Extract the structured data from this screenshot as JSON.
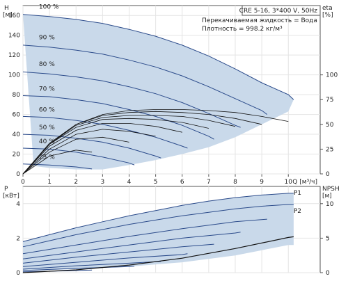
{
  "chart_data": [
    {
      "type": "line",
      "panel": "head-efficiency",
      "title": "CRE 5-16, 3*400 V, 50Hz",
      "info": [
        "Перекачиваемая жидкость = Вода",
        "Плотность = 998.2 кг/м³"
      ],
      "ylabel": [
        "H",
        "[м]"
      ],
      "y2label": [
        "eta",
        "[%]"
      ],
      "xlabel": "Q [м³/ч]",
      "xlim": [
        0,
        11.2
      ],
      "ylim": [
        0,
        170
      ],
      "y2lim": [
        0,
        170
      ],
      "xticks": [
        "0",
        "1",
        "2",
        "3",
        "4",
        "5",
        "6",
        "7",
        "8",
        "9",
        "10"
      ],
      "yticks": [
        "0",
        "20",
        "40",
        "60",
        "80",
        "100",
        "120",
        "140",
        "160"
      ],
      "y2ticks": [
        "0",
        "25",
        "50",
        "75",
        "100"
      ],
      "colors": {
        "band": "#c9d9ea",
        "curve": "#2a4a8a",
        "eta": "#111111"
      },
      "band": {
        "upper": [
          [
            0,
            161
          ],
          [
            1,
            159
          ],
          [
            2,
            156
          ],
          [
            3,
            152
          ],
          [
            4,
            146
          ],
          [
            5,
            139
          ],
          [
            6,
            130
          ],
          [
            7,
            119
          ],
          [
            8,
            106
          ],
          [
            9,
            92
          ],
          [
            10,
            80
          ],
          [
            10.2,
            75
          ]
        ],
        "lower": [
          [
            0.4,
            8
          ],
          [
            1,
            6
          ],
          [
            2,
            4.5
          ],
          [
            3,
            4.5
          ],
          [
            4,
            9
          ],
          [
            5,
            14
          ],
          [
            6,
            20
          ],
          [
            7,
            27
          ],
          [
            8,
            37
          ],
          [
            9,
            50
          ],
          [
            10,
            63
          ],
          [
            10.2,
            75
          ]
        ]
      },
      "series": [
        {
          "name": "100 %",
          "x": [
            0,
            1,
            2,
            3,
            4,
            5,
            6,
            7,
            8,
            9,
            10,
            10.2
          ],
          "y": [
            161,
            159,
            156,
            152,
            146,
            139,
            130,
            119,
            106,
            92,
            80,
            75
          ]
        },
        {
          "name": "90 %",
          "x": [
            0,
            1,
            2,
            3,
            4,
            5,
            6,
            7,
            8,
            9,
            9.2
          ],
          "y": [
            130,
            128,
            125,
            121,
            115,
            108,
            99,
            88,
            76,
            64,
            60
          ]
        },
        {
          "name": "80 %",
          "x": [
            0,
            1,
            2,
            3,
            4,
            5,
            6,
            7,
            8,
            8.2
          ],
          "y": [
            103,
            101,
            98,
            94,
            88,
            81,
            72,
            61,
            49,
            47
          ]
        },
        {
          "name": "70 %",
          "x": [
            0,
            1,
            2,
            3,
            4,
            5,
            6,
            7,
            7.2
          ],
          "y": [
            79,
            78,
            75,
            71,
            65,
            58,
            49,
            38,
            35
          ]
        },
        {
          "name": "60 %",
          "x": [
            0,
            1,
            2,
            3,
            4,
            5,
            6,
            6.2
          ],
          "y": [
            58,
            57,
            54,
            50,
            44,
            37,
            28,
            26
          ]
        },
        {
          "name": "50 %",
          "x": [
            0,
            1,
            2,
            3,
            4,
            5,
            5.2
          ],
          "y": [
            40,
            39,
            36,
            32,
            26,
            18,
            16
          ]
        },
        {
          "name": "40 %",
          "x": [
            0,
            1,
            2,
            3,
            4,
            4.2
          ],
          "y": [
            26,
            25,
            22,
            17,
            11,
            9
          ]
        },
        {
          "name": "25 %",
          "x": [
            0,
            1,
            2,
            2.6
          ],
          "y": [
            10,
            9,
            7,
            5
          ]
        }
      ],
      "eta_series": [
        {
          "x": [
            0,
            1,
            2,
            3,
            4,
            5,
            6,
            7,
            8,
            9,
            10
          ],
          "y": [
            0,
            30,
            50,
            60,
            64,
            65,
            65,
            64,
            62,
            58,
            53
          ]
        },
        {
          "x": [
            0,
            1,
            2,
            3,
            4,
            5,
            6,
            7,
            8,
            9
          ],
          "y": [
            0,
            31,
            50,
            59,
            62,
            63,
            62,
            60,
            56,
            50
          ]
        },
        {
          "x": [
            0,
            1,
            2,
            3,
            4,
            5,
            6,
            7,
            8
          ],
          "y": [
            0,
            30,
            49,
            57,
            59,
            59,
            58,
            54,
            48
          ]
        },
        {
          "x": [
            0,
            1,
            2,
            3,
            4,
            5,
            6,
            7
          ],
          "y": [
            0,
            30,
            47,
            55,
            56,
            55,
            52,
            46
          ]
        },
        {
          "x": [
            0,
            1,
            2,
            3,
            4,
            5,
            6
          ],
          "y": [
            0,
            28,
            44,
            51,
            51,
            48,
            42
          ]
        },
        {
          "x": [
            0,
            1,
            2,
            3,
            4,
            5
          ],
          "y": [
            0,
            25,
            40,
            45,
            43,
            38
          ]
        },
        {
          "x": [
            0,
            1,
            2,
            3,
            4
          ],
          "y": [
            0,
            22,
            35,
            37,
            32
          ]
        },
        {
          "x": [
            0,
            1,
            2,
            2.6
          ],
          "y": [
            0,
            18,
            24,
            22
          ]
        }
      ]
    },
    {
      "type": "line",
      "panel": "power-npsh",
      "ylabel": [
        "P",
        "[кВт]"
      ],
      "y2label": [
        "NPSH",
        "[м]"
      ],
      "xlim": [
        0,
        11.2
      ],
      "ylim": [
        0,
        5
      ],
      "y2lim": [
        0,
        12.5
      ],
      "yticks": [
        "0",
        "2",
        "4"
      ],
      "y2ticks": [
        "0",
        "5",
        "10"
      ],
      "colors": {
        "band": "#c9d9ea",
        "curve": "#2a4a8a",
        "npsh": "#111111",
        "label": "#2a6aa8"
      },
      "band": {
        "upper": [
          [
            0,
            1.8
          ],
          [
            1,
            2.2
          ],
          [
            2,
            2.6
          ],
          [
            3,
            2.95
          ],
          [
            4,
            3.3
          ],
          [
            5,
            3.6
          ],
          [
            6,
            3.9
          ],
          [
            7,
            4.15
          ],
          [
            8,
            4.35
          ],
          [
            9,
            4.5
          ],
          [
            10,
            4.6
          ],
          [
            10.2,
            4.6
          ]
        ],
        "lower": [
          [
            0,
            0.1
          ],
          [
            2,
            0.2
          ],
          [
            4,
            0.35
          ],
          [
            6,
            0.6
          ],
          [
            8,
            1
          ],
          [
            10,
            1.6
          ],
          [
            10.2,
            1.6
          ]
        ]
      },
      "series_labels": [
        "P1",
        "P2"
      ],
      "series": [
        {
          "x": [
            0,
            1,
            2,
            3,
            4,
            5,
            6,
            7,
            8,
            9,
            10,
            10.2
          ],
          "y": [
            1.8,
            2.2,
            2.6,
            2.95,
            3.3,
            3.6,
            3.9,
            4.15,
            4.35,
            4.5,
            4.6,
            4.6
          ]
        },
        {
          "x": [
            0,
            1,
            2,
            3,
            4,
            5,
            6,
            7,
            8,
            9,
            10,
            10.2
          ],
          "y": [
            1.5,
            1.85,
            2.2,
            2.5,
            2.8,
            3.05,
            3.3,
            3.5,
            3.7,
            3.85,
            3.95,
            3.95
          ]
        },
        {
          "x": [
            0,
            2,
            4,
            6,
            8,
            9.2
          ],
          "y": [
            1.1,
            1.6,
            2.1,
            2.55,
            2.95,
            3.1
          ]
        },
        {
          "x": [
            0,
            2,
            4,
            6,
            8,
            8.2
          ],
          "y": [
            0.8,
            1.2,
            1.6,
            2,
            2.3,
            2.35
          ]
        },
        {
          "x": [
            0,
            2,
            4,
            6,
            7.2
          ],
          "y": [
            0.55,
            0.9,
            1.2,
            1.5,
            1.65
          ]
        },
        {
          "x": [
            0,
            2,
            4,
            6,
            6.2
          ],
          "y": [
            0.35,
            0.6,
            0.85,
            1.05,
            1.1
          ]
        },
        {
          "x": [
            0,
            2,
            4,
            5.2
          ],
          "y": [
            0.2,
            0.4,
            0.55,
            0.65
          ]
        },
        {
          "x": [
            0,
            2,
            4,
            4.2
          ],
          "y": [
            0.12,
            0.25,
            0.35,
            0.38
          ]
        },
        {
          "x": [
            0,
            1.5,
            2.6
          ],
          "y": [
            0.05,
            0.1,
            0.15
          ]
        }
      ],
      "npsh": {
        "x": [
          0,
          2,
          4,
          6,
          8,
          10,
          10.2
        ],
        "y": [
          0,
          0.4,
          1.1,
          2.1,
          3.5,
          5.1,
          5.2
        ]
      }
    }
  ]
}
